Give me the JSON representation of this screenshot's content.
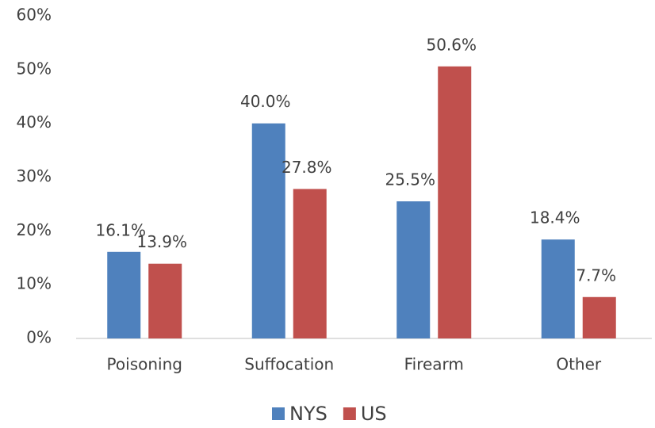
{
  "chart_data": {
    "type": "bar",
    "categories": [
      "Poisoning",
      "Suffocation",
      "Firearm",
      "Other"
    ],
    "series": [
      {
        "name": "NYS",
        "color": "#4f81bd",
        "values": [
          16.1,
          40.0,
          25.5,
          18.4
        ],
        "value_labels": [
          "16.1%",
          "40.0%",
          "25.5%",
          "18.4%"
        ]
      },
      {
        "name": "US",
        "color": "#c0504d",
        "values": [
          13.9,
          27.8,
          50.6,
          7.7
        ],
        "value_labels": [
          "13.9%",
          "27.8%",
          "50.6%",
          "7.7%"
        ]
      }
    ],
    "ylim": [
      0,
      60
    ],
    "yticks": [
      {
        "value": 0,
        "label": "0%"
      },
      {
        "value": 10,
        "label": "10%"
      },
      {
        "value": 20,
        "label": "20%"
      },
      {
        "value": 30,
        "label": "30%"
      },
      {
        "value": 40,
        "label": "40%"
      },
      {
        "value": 50,
        "label": "50%"
      },
      {
        "value": 60,
        "label": "60%"
      }
    ],
    "grid": false,
    "legend": "bottom"
  }
}
